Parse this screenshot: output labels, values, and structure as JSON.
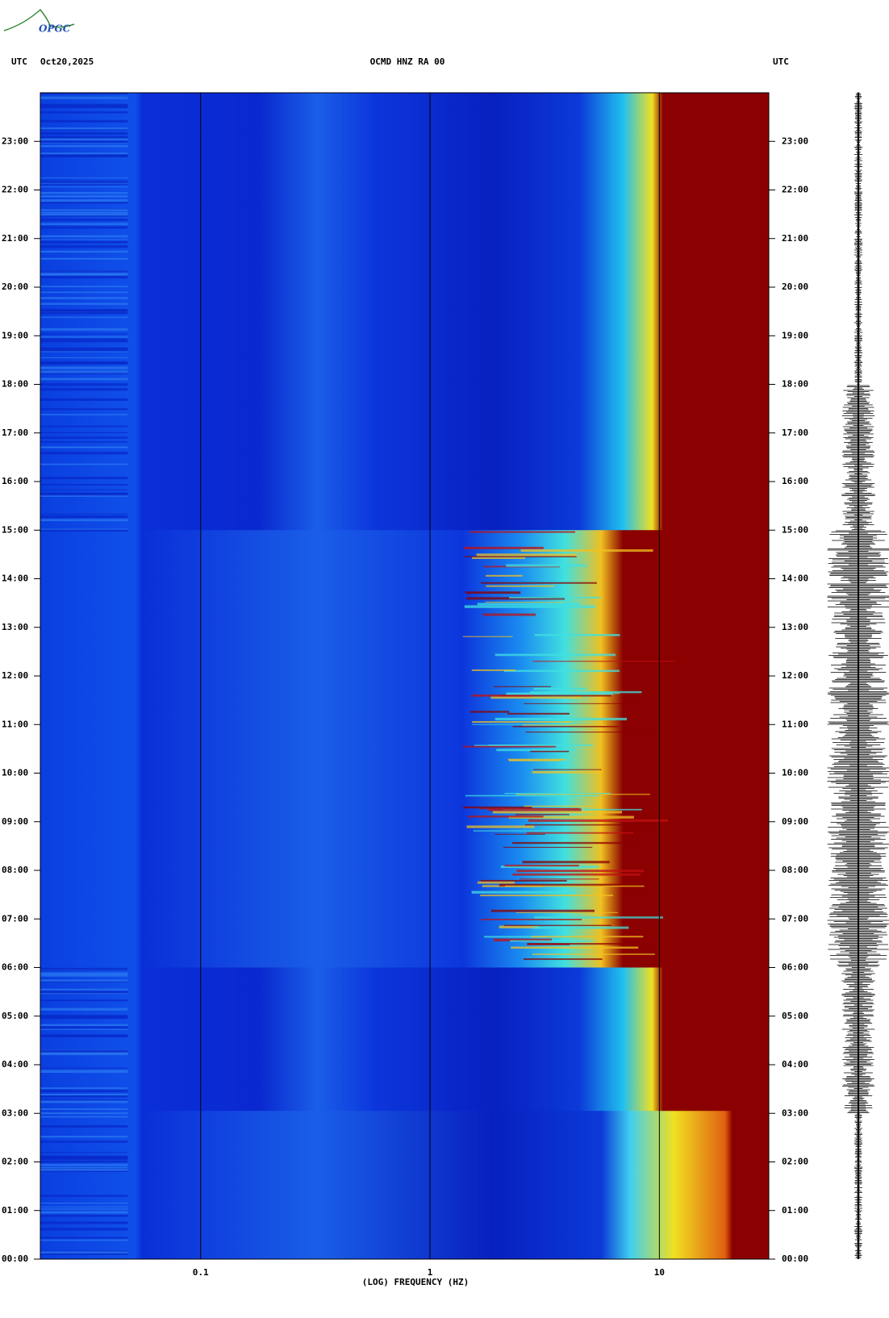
{
  "chart_data": {
    "type": "spectrogram",
    "logo": "OPGC",
    "header_left": "UTC",
    "date": "Oct20,2025",
    "title": "OCMD HNZ RA 00",
    "header_right": "UTC",
    "x_label": "(LOG) FREQUENCY (HZ)",
    "x_log": true,
    "xlim": [
      0.02,
      30
    ],
    "xticks": [
      0.1,
      1,
      10
    ],
    "ylim": [
      0,
      24
    ],
    "yticks": [
      {
        "value": 0,
        "label": "00:00"
      },
      {
        "value": 1,
        "label": "01:00"
      },
      {
        "value": 2,
        "label": "02:00"
      },
      {
        "value": 3,
        "label": "03:00"
      },
      {
        "value": 4,
        "label": "04:00"
      },
      {
        "value": 5,
        "label": "05:00"
      },
      {
        "value": 6,
        "label": "06:00"
      },
      {
        "value": 7,
        "label": "07:00"
      },
      {
        "value": 8,
        "label": "08:00"
      },
      {
        "value": 9,
        "label": "09:00"
      },
      {
        "value": 10,
        "label": "10:00"
      },
      {
        "value": 11,
        "label": "11:00"
      },
      {
        "value": 12,
        "label": "12:00"
      },
      {
        "value": 13,
        "label": "13:00"
      },
      {
        "value": 14,
        "label": "14:00"
      },
      {
        "value": 15,
        "label": "15:00"
      },
      {
        "value": 16,
        "label": "16:00"
      },
      {
        "value": 17,
        "label": "17:00"
      },
      {
        "value": 18,
        "label": "18:00"
      },
      {
        "value": 19,
        "label": "19:00"
      },
      {
        "value": 20,
        "label": "20:00"
      },
      {
        "value": 21,
        "label": "21:00"
      },
      {
        "value": 22,
        "label": "22:00"
      },
      {
        "value": 23,
        "label": "23:00"
      }
    ]
  }
}
